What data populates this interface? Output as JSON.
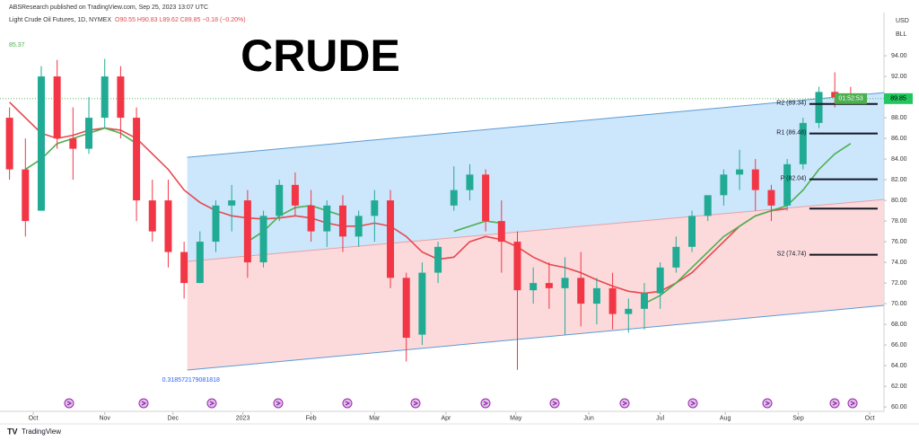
{
  "chart_data": {
    "type": "candlestick",
    "publisher": "ABSResearch published on TradingView.com, Sep 25, 2023 13:07 UTC",
    "symbol": "Light Crude Oil Futures, 1D, NYMEX",
    "ohlc_text": "O90.55 H90.83 L89.62 C89.85 −0.18 (−0.20%)",
    "title": "CRUDE",
    "ma_label": "85.37",
    "currency": "USD",
    "unit": "BLL",
    "footer": "TradingView",
    "up_color": "#22ab94",
    "down_color": "#f23645",
    "open": [
      88,
      83,
      79,
      92,
      86,
      85,
      88,
      92,
      88,
      80,
      80,
      75,
      72,
      76,
      79.5,
      80,
      74,
      78.5,
      81.5,
      79.5,
      77,
      79.5,
      76.5,
      78.5,
      80,
      72.5,
      67,
      73,
      79.5,
      81,
      82.5,
      78,
      76,
      71.3,
      72,
      71.5,
      72.5,
      70,
      71.5,
      69,
      69.5,
      71,
      73.5,
      75.5,
      78.5,
      80.5,
      82.5,
      83,
      81,
      79.5,
      83.5,
      87.5,
      90.5,
      90
    ],
    "high": [
      89,
      86,
      93,
      93.6,
      89,
      90,
      93.7,
      93,
      89,
      82,
      82,
      76,
      77,
      80,
      81.5,
      81,
      79,
      82,
      82.7,
      81,
      80,
      80.5,
      79,
      81,
      81,
      73,
      74,
      76,
      83.3,
      83.5,
      83,
      80,
      77,
      73.5,
      74,
      74.5,
      75,
      72.5,
      73,
      70.5,
      72,
      74,
      76.5,
      79,
      80.5,
      83,
      84.9,
      84,
      81.5,
      84,
      88,
      91,
      92.4,
      91
    ],
    "low": [
      82,
      76.5,
      79,
      85,
      82,
      84.5,
      87,
      86,
      78,
      76,
      73.5,
      70.5,
      72,
      75,
      77,
      72.5,
      73.5,
      78,
      78.5,
      76,
      75.5,
      75,
      75.5,
      76,
      71.5,
      64.4,
      66,
      72,
      79,
      80,
      77,
      73,
      63.6,
      70,
      69.5,
      67,
      67.8,
      68,
      67.5,
      67.2,
      67.5,
      69.5,
      73,
      75,
      78,
      79.5,
      81,
      79,
      78,
      79,
      83,
      87,
      89,
      89.6
    ],
    "close": [
      83,
      78,
      92,
      86,
      85,
      88,
      92,
      88,
      80,
      77,
      75,
      72,
      76,
      79.5,
      80,
      74,
      78.5,
      81.5,
      79.5,
      77,
      79.5,
      76.5,
      78.5,
      80,
      72.5,
      66.7,
      73,
      75.5,
      81,
      82.5,
      78,
      76,
      71.3,
      72,
      71.5,
      72.5,
      70,
      71.5,
      69,
      69.5,
      71,
      73.5,
      75.5,
      78.5,
      80.5,
      82.5,
      83,
      81,
      79.5,
      83.5,
      87.5,
      90.5,
      90,
      89.85
    ],
    "moving_averages": [
      {
        "color": "#e5484d",
        "values": [
          89.5,
          88,
          86.5,
          86,
          86.3,
          86.8,
          87,
          86.8,
          86,
          84.5,
          83,
          81,
          79.8,
          79,
          78.5,
          78.3,
          78.2,
          78.3,
          78.5,
          78.3,
          77.8,
          77.5,
          77.5,
          77.8,
          77.5,
          76.5,
          75,
          74.3,
          74.5,
          76,
          76.5,
          76.2,
          75.5,
          74.5,
          73.8,
          73.5,
          73,
          72.3,
          71.7,
          71.2,
          71,
          71.2,
          72,
          73,
          74.5,
          76,
          77.5,
          78.5,
          79,
          79.2,
          null,
          null,
          null,
          null
        ]
      },
      {
        "color": "#4caf50",
        "values": [
          null,
          83,
          84,
          85.5,
          86,
          86.5,
          87,
          86.5,
          85.5,
          null,
          null,
          null,
          null,
          null,
          null,
          76,
          77,
          78.5,
          79.3,
          79.5,
          79,
          78.5,
          null,
          null,
          null,
          null,
          null,
          null,
          77,
          77.5,
          78,
          77.8,
          null,
          null,
          null,
          null,
          null,
          null,
          null,
          null,
          70,
          70.8,
          72,
          73.5,
          75,
          76.5,
          77.5,
          78.5,
          79,
          79.5,
          81,
          83,
          84.5,
          85.5
        ]
      }
    ],
    "channel": {
      "x": [
        11.2,
        55.1
      ],
      "upper": [
        84.17,
        90.43
      ],
      "middle": [
        74.09,
        80.09
      ],
      "lower": [
        63.57,
        69.83
      ],
      "label": "0.318572179081818"
    },
    "pivots": [
      {
        "label": "R2 (89.34)",
        "value": 89.34
      },
      {
        "label": "R1 (86.48)",
        "value": 86.48
      },
      {
        "label": "P (82.04)",
        "value": 82.04
      },
      {
        "value": 79.2
      },
      {
        "label": "S2 (74.74)",
        "value": 74.74
      }
    ],
    "last_price": {
      "value": 89.85,
      "label": "89.85",
      "countdown": "01:52:53"
    },
    "xlim": [
      -0.6,
      55.1
    ],
    "xticks": [
      {
        "value": 1.5,
        "label": "Oct"
      },
      {
        "value": 6,
        "label": "Nov"
      },
      {
        "value": 10.3,
        "label": "Dec"
      },
      {
        "value": 14.7,
        "label": "2023"
      },
      {
        "value": 19,
        "label": "Feb"
      },
      {
        "value": 23,
        "label": "Mar"
      },
      {
        "value": 27.5,
        "label": "Apr"
      },
      {
        "value": 31.9,
        "label": "May"
      },
      {
        "value": 36.5,
        "label": "Jun"
      },
      {
        "value": 41,
        "label": "Jul"
      },
      {
        "value": 45.1,
        "label": "Aug"
      },
      {
        "value": 49.7,
        "label": "Sep"
      },
      {
        "value": 54.2,
        "label": "Oct"
      }
    ],
    "ylim": [
      59.5,
      97.4
    ],
    "yticks": [
      {
        "value": 94,
        "label": "94.00"
      },
      {
        "value": 92,
        "label": "92.00"
      },
      {
        "value": 90,
        "label": "90.00"
      },
      {
        "value": 88,
        "label": "88.00"
      },
      {
        "value": 86,
        "label": "86.00"
      },
      {
        "value": 84,
        "label": "84.00"
      },
      {
        "value": 82,
        "label": "82.00"
      },
      {
        "value": 80,
        "label": "80.00"
      },
      {
        "value": 78,
        "label": "78.00"
      },
      {
        "value": 76,
        "label": "76.00"
      },
      {
        "value": 74,
        "label": "74.00"
      },
      {
        "value": 72,
        "label": "72.00"
      },
      {
        "value": 70,
        "label": "70.00"
      },
      {
        "value": 68,
        "label": "68.00"
      },
      {
        "value": 66,
        "label": "66.00"
      },
      {
        "value": 64,
        "label": "64.00"
      },
      {
        "value": 62,
        "label": "62.00"
      },
      {
        "value": 60,
        "label": "60.00"
      }
    ]
  }
}
